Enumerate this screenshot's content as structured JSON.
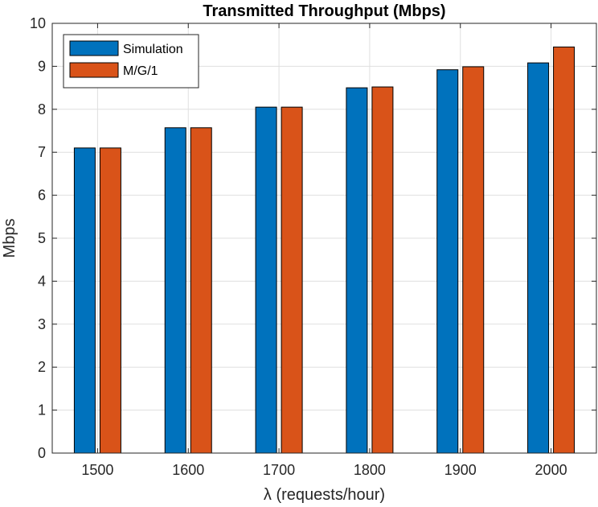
{
  "chart_data": {
    "type": "bar",
    "title": "Transmitted Throughput (Mbps)",
    "xlabel": "λ (requests/hour)",
    "ylabel": "Mbps",
    "categories": [
      "1500",
      "1600",
      "1700",
      "1800",
      "1900",
      "2000"
    ],
    "ylim": [
      0,
      10
    ],
    "yticks": [
      0,
      1,
      2,
      3,
      4,
      5,
      6,
      7,
      8,
      9,
      10
    ],
    "grid": true,
    "legend_position": "top-left",
    "series": [
      {
        "name": "Simulation",
        "color": "#0072BD",
        "values": [
          7.1,
          7.57,
          8.05,
          8.5,
          8.92,
          9.08
        ]
      },
      {
        "name": "M/G/1",
        "color": "#D95319",
        "values": [
          7.1,
          7.57,
          8.05,
          8.52,
          8.99,
          9.45
        ]
      }
    ]
  }
}
